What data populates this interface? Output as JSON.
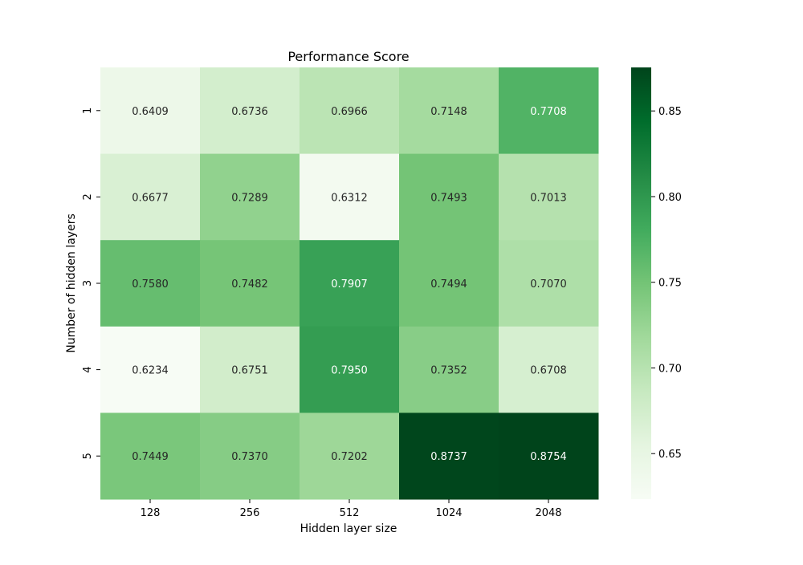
{
  "chart_data": {
    "type": "heatmap",
    "title": "Performance Score",
    "xlabel": "Hidden layer size",
    "ylabel": "Number of hidden layers",
    "x_categories": [
      "128",
      "256",
      "512",
      "1024",
      "2048"
    ],
    "y_categories": [
      "1",
      "2",
      "3",
      "4",
      "5"
    ],
    "values": [
      [
        0.6409,
        0.6736,
        0.6966,
        0.7148,
        0.7708
      ],
      [
        0.6677,
        0.7289,
        0.6312,
        0.7493,
        0.7013
      ],
      [
        0.758,
        0.7482,
        0.7907,
        0.7494,
        0.707
      ],
      [
        0.6234,
        0.6751,
        0.795,
        0.7352,
        0.6708
      ],
      [
        0.7449,
        0.737,
        0.7202,
        0.8737,
        0.8754
      ]
    ],
    "value_labels": [
      [
        "0.6409",
        "0.6736",
        "0.6966",
        "0.7148",
        "0.7708"
      ],
      [
        "0.6677",
        "0.7289",
        "0.6312",
        "0.7493",
        "0.7013"
      ],
      [
        "0.7580",
        "0.7482",
        "0.7907",
        "0.7494",
        "0.7070"
      ],
      [
        "0.6234",
        "0.6751",
        "0.7950",
        "0.7352",
        "0.6708"
      ],
      [
        "0.7449",
        "0.7370",
        "0.7202",
        "0.8737",
        "0.8754"
      ]
    ],
    "colormap": "Greens",
    "colorbar": {
      "vmin": 0.6234,
      "vmax": 0.8754,
      "ticks": [
        0.65,
        0.7,
        0.75,
        0.8,
        0.85
      ],
      "tick_labels": [
        "0.65",
        "0.70",
        "0.75",
        "0.80",
        "0.85"
      ],
      "placement": "right"
    },
    "grid": false,
    "annotated": true
  }
}
